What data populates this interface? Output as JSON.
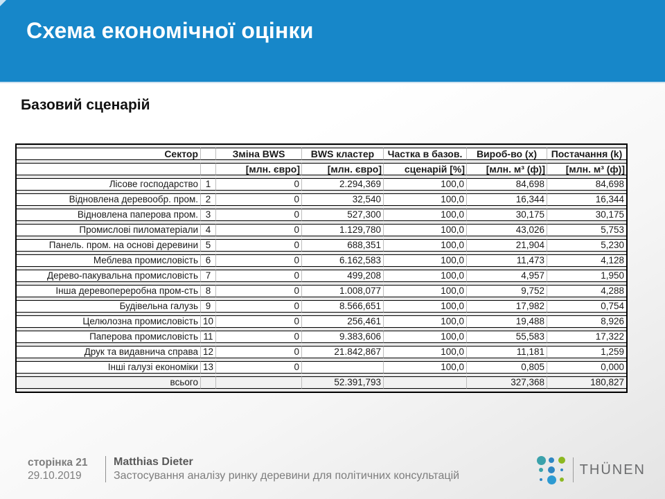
{
  "header": {
    "title": "Схема економічної оцінки",
    "band_color": "#1787c9"
  },
  "subtitle": "Базовий сценарій",
  "table": {
    "columns": [
      {
        "label": "Сектор",
        "unit": ""
      },
      {
        "label": "",
        "unit": ""
      },
      {
        "label": "Зміна BWS",
        "unit": "[млн. євро]"
      },
      {
        "label": "BWS кластер",
        "unit": "[млн. євро]"
      },
      {
        "label": "Частка в базов.",
        "unit": "сценарій [%]"
      },
      {
        "label": "Вироб-во (x)",
        "unit": "[млн. м³ (ф)]"
      },
      {
        "label": "Постачання (k)",
        "unit": "[млн. м³ (ф)]"
      }
    ],
    "rows": [
      [
        "Лісове господарство",
        "1",
        "0",
        "2.294,369",
        "100,0",
        "84,698",
        "84,698"
      ],
      [
        "Відновлена деревообр. пром.",
        "2",
        "0",
        "32,540",
        "100,0",
        "16,344",
        "16,344"
      ],
      [
        "Відновлена паперова пром.",
        "3",
        "0",
        "527,300",
        "100,0",
        "30,175",
        "30,175"
      ],
      [
        "Промислові пиломатеріали",
        "4",
        "0",
        "1.129,780",
        "100,0",
        "43,026",
        "5,753"
      ],
      [
        "Панель. пром. на основі деревини",
        "5",
        "0",
        "688,351",
        "100,0",
        "21,904",
        "5,230"
      ],
      [
        "Меблева промисловість",
        "6",
        "0",
        "6.162,583",
        "100,0",
        "11,473",
        "4,128"
      ],
      [
        "Дерево-пакувальна промисловість",
        "7",
        "0",
        "499,208",
        "100,0",
        "4,957",
        "1,950"
      ],
      [
        "Інша деревопереробна пром-сть",
        "8",
        "0",
        "1.008,077",
        "100,0",
        "9,752",
        "4,288"
      ],
      [
        "Будівельна галузь",
        "9",
        "0",
        "8.566,651",
        "100,0",
        "17,982",
        "0,754"
      ],
      [
        "Целюлозна промисловість",
        "10",
        "0",
        "256,461",
        "100,0",
        "19,488",
        "8,926"
      ],
      [
        "Паперова промисловість",
        "11",
        "0",
        "9.383,606",
        "100,0",
        "55,583",
        "17,322"
      ],
      [
        "Друк та видавнича справа",
        "12",
        "0",
        "21.842,867",
        "100,0",
        "11,181",
        "1,259"
      ],
      [
        "Інші галузі економіки",
        "13",
        "0",
        "",
        "100,0",
        "0,805",
        "0,000"
      ],
      [
        "всього",
        "",
        "",
        "52.391,793",
        "",
        "327,368",
        "180,827"
      ]
    ]
  },
  "footer": {
    "page": "сторінка 21",
    "date": "29.10.2019",
    "author": "Matthias Dieter",
    "subtitle": "Застосування аналізу ринку деревини для політичних консультацій"
  },
  "logo": {
    "brand": "THÜNEN",
    "dots": [
      {
        "size": 13,
        "color": "#3ba2ab"
      },
      {
        "size": 8,
        "color": "#2f87c3"
      },
      {
        "size": 10,
        "color": "#8cb821"
      },
      {
        "size": 6,
        "color": "#3ba2ab"
      },
      {
        "size": 10,
        "color": "#2f87c3"
      },
      {
        "size": 4,
        "color": "#2f87c3"
      },
      {
        "size": 4,
        "color": "#2f87c3"
      },
      {
        "size": 13,
        "color": "#2d9ad2"
      },
      {
        "size": 6,
        "color": "#8cb821"
      }
    ]
  }
}
